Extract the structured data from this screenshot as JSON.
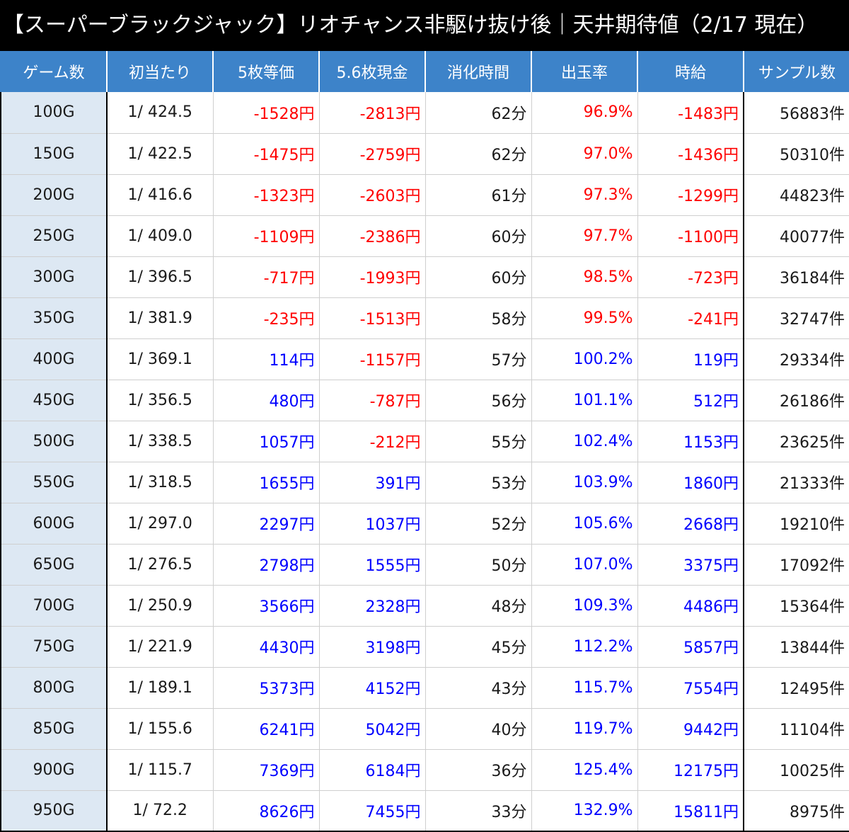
{
  "title": "【スーパーブラックジャック】リオチャンス非駆け抜け後｜天井期待値（2/17 現在）",
  "colors": {
    "header_bg": "#3d83c9",
    "negative": "#ff0000",
    "positive": "#0000ff",
    "games_col_bg": "#dde8f3"
  },
  "headers": [
    "ゲーム数",
    "初当たり",
    "5枚等価",
    "5.6枚現金",
    "消化時間",
    "出玉率",
    "時給",
    "サンプル数"
  ],
  "rows": [
    [
      "100G",
      "1/ 424.5",
      "-1528円",
      "-2813円",
      "62分",
      "96.9%",
      "-1483円",
      "56883件"
    ],
    [
      "150G",
      "1/ 422.5",
      "-1475円",
      "-2759円",
      "62分",
      "97.0%",
      "-1436円",
      "50310件"
    ],
    [
      "200G",
      "1/ 416.6",
      "-1323円",
      "-2603円",
      "61分",
      "97.3%",
      "-1299円",
      "44823件"
    ],
    [
      "250G",
      "1/ 409.0",
      "-1109円",
      "-2386円",
      "60分",
      "97.7%",
      "-1100円",
      "40077件"
    ],
    [
      "300G",
      "1/ 396.5",
      "-717円",
      "-1993円",
      "60分",
      "98.5%",
      "-723円",
      "36184件"
    ],
    [
      "350G",
      "1/ 381.9",
      "-235円",
      "-1513円",
      "58分",
      "99.5%",
      "-241円",
      "32747件"
    ],
    [
      "400G",
      "1/ 369.1",
      "114円",
      "-1157円",
      "57分",
      "100.2%",
      "119円",
      "29334件"
    ],
    [
      "450G",
      "1/ 356.5",
      "480円",
      "-787円",
      "56分",
      "101.1%",
      "512円",
      "26186件"
    ],
    [
      "500G",
      "1/ 338.5",
      "1057円",
      "-212円",
      "55分",
      "102.4%",
      "1153円",
      "23625件"
    ],
    [
      "550G",
      "1/ 318.5",
      "1655円",
      "391円",
      "53分",
      "103.9%",
      "1860円",
      "21333件"
    ],
    [
      "600G",
      "1/ 297.0",
      "2297円",
      "1037円",
      "52分",
      "105.6%",
      "2668円",
      "19210件"
    ],
    [
      "650G",
      "1/ 276.5",
      "2798円",
      "1555円",
      "50分",
      "107.0%",
      "3375円",
      "17092件"
    ],
    [
      "700G",
      "1/ 250.9",
      "3566円",
      "2328円",
      "48分",
      "109.3%",
      "4486円",
      "15364件"
    ],
    [
      "750G",
      "1/ 221.9",
      "4430円",
      "3198円",
      "45分",
      "112.2%",
      "5857円",
      "13844件"
    ],
    [
      "800G",
      "1/ 189.1",
      "5373円",
      "4152円",
      "43分",
      "115.7%",
      "7554円",
      "12495件"
    ],
    [
      "850G",
      "1/ 155.6",
      "6241円",
      "5042円",
      "40分",
      "119.7%",
      "9442円",
      "11104件"
    ],
    [
      "900G",
      "1/ 115.7",
      "7369円",
      "6184円",
      "36分",
      "125.4%",
      "12175円",
      "10025件"
    ],
    [
      "950G",
      "1/ 72.2",
      "8626円",
      "7455円",
      "33分",
      "132.9%",
      "15811円",
      "8975件"
    ]
  ]
}
